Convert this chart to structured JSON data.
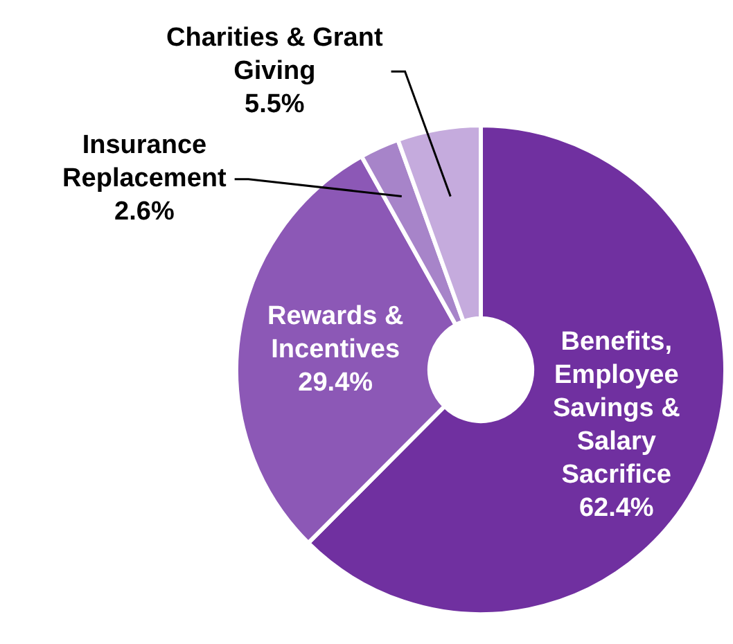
{
  "chart_data": {
    "type": "donut",
    "categories": [
      "Benefits, Employee Savings & Salary Sacrifice",
      "Rewards & Incentives",
      "Insurance Replacement",
      "Charities & Grant Giving"
    ],
    "values": [
      62.4,
      29.4,
      2.6,
      5.5
    ],
    "colors": [
      "#7030a0",
      "#8c58b6",
      "#a784c9",
      "#c5abdd"
    ],
    "value_labels": [
      "62.4%",
      "29.4%",
      "2.6%",
      "5.5%"
    ],
    "legend": false
  }
}
